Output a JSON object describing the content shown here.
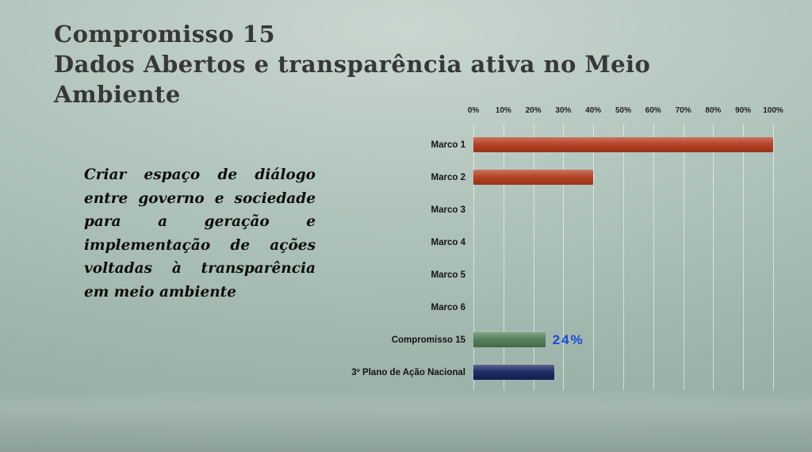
{
  "slide": {
    "title_line1": "Compromisso 15",
    "title_line2": "Dados Abertos e transparência ativa no Meio Ambiente",
    "body_text": "Criar espaço de diálogo entre governo e sociedade para a geração e implementação de ações voltadas à transparência em meio ambiente"
  },
  "chart_data": {
    "type": "bar",
    "orientation": "horizontal",
    "title": "",
    "categories": [
      "Marco 1",
      "Marco 2",
      "Marco 3",
      "Marco 4",
      "Marco 5",
      "Marco 6",
      "Compromisso 15",
      "3º Plano de Ação Nacional"
    ],
    "values": [
      100,
      40,
      0,
      0,
      0,
      0,
      24,
      27
    ],
    "bar_colors": [
      "#b13a1c",
      "#b13a1c",
      "#b13a1c",
      "#b13a1c",
      "#b13a1c",
      "#b13a1c",
      "#4e7b54",
      "#16215e"
    ],
    "value_labels": [
      "",
      "",
      "",
      "",
      "",
      "",
      "24%",
      ""
    ],
    "value_label_color": "#1c49d4",
    "x_ticks": [
      "0%",
      "10%",
      "20%",
      "30%",
      "40%",
      "50%",
      "60%",
      "70%",
      "80%",
      "90%",
      "100%"
    ],
    "xlim": [
      0,
      100
    ],
    "grid": true,
    "legend": false
  },
  "colors": {
    "background": "#a8beb5",
    "title_text": "#373737",
    "body_text": "#0d0d0d",
    "gridline": "rgba(255,255,255,0.55)"
  }
}
